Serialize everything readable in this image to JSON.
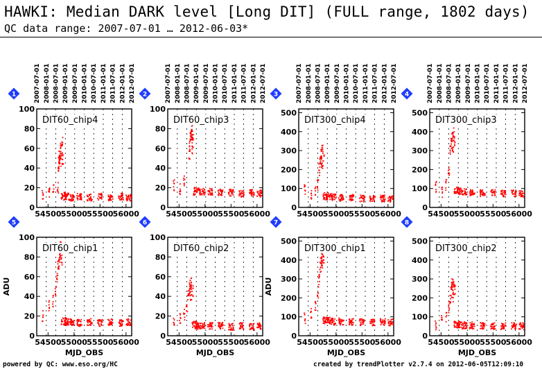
{
  "header": {
    "title": "HAWKI: Median DARK level [Long DIT] (FULL range, 1802 days)",
    "subtitle": "QC data range: 2007-07-01 … 2012-06-03*"
  },
  "footer": {
    "left": "powered by QC: www.eso.org/HC",
    "right": "created by trendPlotter v2.7.4 on 2012-06-05T12:09:10"
  },
  "colors": {
    "points": "#ff0000",
    "badge": "#1e3cff",
    "grid": "#000000"
  },
  "top_date_labels": [
    "2007-07-01",
    "2008-01-01",
    "2008-07-01",
    "2009-01-01",
    "2009-07-01",
    "2010-01-01",
    "2010-07-01",
    "2011-01-01",
    "2011-07-01",
    "2012-01-01",
    "2012-07-01"
  ],
  "top_date_mjd": [
    54282,
    54466,
    54648,
    54832,
    55013,
    55197,
    55378,
    55562,
    55743,
    55927,
    56109
  ],
  "chart_data": [
    {
      "type": "scatter",
      "panel": "1",
      "label": "DIT60_chip4",
      "xlabel": "",
      "ylabel": "",
      "xlim": [
        54282,
        56109
      ],
      "ylim": [
        0,
        100
      ],
      "yticks": [
        0,
        20,
        40,
        60,
        80,
        100
      ],
      "xticks": [
        54500,
        55000,
        55500,
        56000
      ],
      "series": [
        {
          "x": [
            54400,
            54520,
            54600,
            54690,
            54700,
            54710,
            54720,
            54730,
            54740,
            54750,
            54760,
            54770,
            54780,
            54800,
            54850,
            54950,
            55100,
            55300,
            55500,
            55700,
            55900,
            56050
          ],
          "y": [
            12,
            16,
            18,
            20,
            40,
            47,
            52,
            55,
            45,
            60,
            50,
            65,
            48,
            12,
            11,
            10,
            11,
            10,
            11,
            10,
            11,
            10
          ]
        }
      ]
    },
    {
      "type": "scatter",
      "panel": "2",
      "label": "DIT60_chip3",
      "xlabel": "",
      "ylabel": "",
      "xlim": [
        54282,
        56109
      ],
      "ylim": [
        0,
        100
      ],
      "yticks": [
        0,
        20,
        40,
        60,
        80,
        100
      ],
      "xticks": [
        54500,
        55000,
        55500,
        56000
      ],
      "series": [
        {
          "x": [
            54400,
            54520,
            54600,
            54700,
            54710,
            54720,
            54730,
            54740,
            54750,
            54760,
            54770,
            54790,
            54850,
            54950,
            55100,
            55300,
            55500,
            55700,
            55900,
            56050
          ],
          "y": [
            22,
            18,
            28,
            55,
            65,
            70,
            75,
            68,
            80,
            60,
            72,
            18,
            17,
            16,
            16,
            15,
            15,
            14,
            15,
            14
          ]
        }
      ]
    },
    {
      "type": "scatter",
      "panel": "3",
      "label": "DIT300_chip4",
      "xlabel": "",
      "ylabel": "",
      "xlim": [
        54282,
        56109
      ],
      "ylim": [
        0,
        520
      ],
      "yticks": [
        0,
        100,
        200,
        300,
        400,
        500
      ],
      "xticks": [
        54500,
        55000,
        55500,
        56000
      ],
      "series": [
        {
          "x": [
            54400,
            54520,
            54600,
            54650,
            54680,
            54700,
            54710,
            54720,
            54730,
            54740,
            54760,
            54800,
            54850,
            54950,
            55100,
            55300,
            55500,
            55700,
            55900,
            56050
          ],
          "y": [
            90,
            70,
            80,
            120,
            200,
            240,
            260,
            280,
            230,
            300,
            250,
            60,
            55,
            55,
            50,
            50,
            48,
            45,
            48,
            45
          ]
        }
      ]
    },
    {
      "type": "scatter",
      "panel": "4",
      "label": "DIT300_chip3",
      "xlabel": "",
      "ylabel": "",
      "xlim": [
        54282,
        56109
      ],
      "ylim": [
        0,
        520
      ],
      "yticks": [
        0,
        100,
        200,
        300,
        400,
        500
      ],
      "xticks": [
        54500,
        55000,
        55500,
        56000
      ],
      "series": [
        {
          "x": [
            54400,
            54520,
            54600,
            54650,
            54680,
            54700,
            54710,
            54720,
            54730,
            54740,
            54760,
            54800,
            54850,
            54950,
            55100,
            55300,
            55500,
            55700,
            55900,
            56050
          ],
          "y": [
            110,
            80,
            120,
            200,
            300,
            340,
            360,
            380,
            320,
            400,
            350,
            90,
            85,
            80,
            80,
            75,
            75,
            72,
            75,
            72
          ]
        }
      ]
    },
    {
      "type": "scatter",
      "panel": "5",
      "label": "DIT60_chip1",
      "xlabel": "",
      "ylabel": "ADU",
      "xlim": [
        54282,
        56109
      ],
      "ylim": [
        0,
        100
      ],
      "yticks": [
        0,
        20,
        40,
        60,
        80,
        100
      ],
      "xticks": [
        54500,
        55000,
        55500,
        56000
      ],
      "series": [
        {
          "x": [
            54400,
            54520,
            54600,
            54650,
            54680,
            54700,
            54710,
            54720,
            54730,
            54740,
            54760,
            54800,
            54850,
            54950,
            55100,
            55300,
            55500,
            55700,
            55900,
            56050
          ],
          "y": [
            20,
            30,
            35,
            45,
            60,
            70,
            75,
            80,
            85,
            90,
            78,
            15,
            14,
            14,
            13,
            14,
            13,
            14,
            13,
            14
          ]
        }
      ]
    },
    {
      "type": "scatter",
      "panel": "6",
      "label": "DIT60_chip2",
      "xlabel": "",
      "ylabel": "",
      "xlim": [
        54282,
        56109
      ],
      "ylim": [
        0,
        100
      ],
      "yticks": [
        0,
        20,
        40,
        60,
        80,
        100
      ],
      "xticks": [
        54500,
        55000,
        55500,
        56000
      ],
      "series": [
        {
          "x": [
            54400,
            54520,
            54600,
            54650,
            54680,
            54700,
            54710,
            54720,
            54730,
            54740,
            54760,
            54800,
            54850,
            54950,
            55100,
            55300,
            55500,
            55700,
            55900,
            56050
          ],
          "y": [
            12,
            18,
            22,
            30,
            40,
            45,
            48,
            52,
            42,
            55,
            46,
            11,
            10,
            10,
            10,
            10,
            9,
            10,
            9,
            10
          ]
        }
      ]
    },
    {
      "type": "scatter",
      "panel": "7",
      "label": "DIT300_chip1",
      "xlabel": "",
      "ylabel": "ADU",
      "xlim": [
        54282,
        56109
      ],
      "ylim": [
        0,
        520
      ],
      "yticks": [
        0,
        100,
        200,
        300,
        400,
        500
      ],
      "xticks": [
        54500,
        55000,
        55500,
        56000
      ],
      "series": [
        {
          "x": [
            54400,
            54520,
            54600,
            54650,
            54680,
            54700,
            54710,
            54720,
            54730,
            54740,
            54760,
            54800,
            54850,
            54950,
            55100,
            55300,
            55500,
            55700,
            55900,
            56050
          ],
          "y": [
            90,
            120,
            160,
            230,
            300,
            360,
            400,
            430,
            380,
            460,
            410,
            80,
            78,
            75,
            75,
            72,
            72,
            70,
            72,
            70
          ]
        }
      ]
    },
    {
      "type": "scatter",
      "panel": "8",
      "label": "DIT300_chip2",
      "xlabel": "",
      "ylabel": "",
      "xlim": [
        54282,
        56109
      ],
      "ylim": [
        0,
        520
      ],
      "yticks": [
        0,
        100,
        200,
        300,
        400,
        500
      ],
      "xticks": [
        54500,
        55000,
        55500,
        56000
      ],
      "series": [
        {
          "x": [
            54400,
            54520,
            54600,
            54650,
            54680,
            54700,
            54710,
            54720,
            54730,
            54740,
            54760,
            54800,
            54850,
            54950,
            55100,
            55300,
            55500,
            55700,
            55900,
            56050
          ],
          "y": [
            60,
            80,
            100,
            150,
            200,
            230,
            250,
            270,
            210,
            280,
            240,
            60,
            58,
            55,
            55,
            52,
            52,
            50,
            52,
            50
          ]
        }
      ]
    }
  ],
  "xaxis_label": "MJD_OBS"
}
